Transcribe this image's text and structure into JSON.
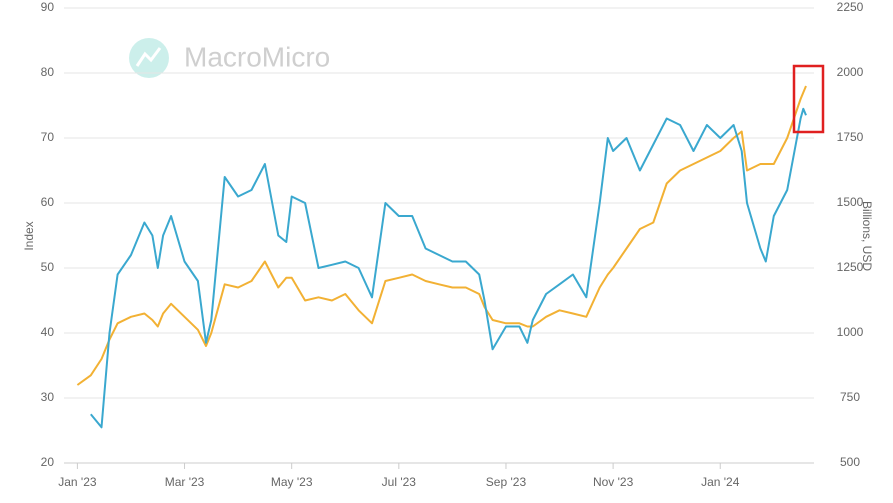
{
  "chart_data": {
    "type": "line",
    "watermark": "MacroMicro",
    "ylabel": "Index",
    "y2label": "Billions, USD",
    "x": [
      0,
      0.25,
      0.45,
      0.6,
      0.75,
      1,
      1.25,
      1.4,
      1.5,
      1.6,
      1.75,
      2,
      2.25,
      2.4,
      2.5,
      2.75,
      3,
      3.25,
      3.5,
      3.75,
      3.9,
      4,
      4.25,
      4.5,
      4.75,
      5,
      5.25,
      5.5,
      5.75,
      6,
      6.25,
      6.5,
      6.75,
      7,
      7.25,
      7.5,
      7.6,
      7.75,
      8,
      8.25,
      8.4,
      8.5,
      8.75,
      9,
      9.25,
      9.5,
      9.75,
      9.9,
      10,
      10.25,
      10.5,
      10.75,
      11,
      11.25,
      11.5,
      11.75,
      12,
      12.25,
      12.4,
      12.5,
      12.75,
      12.85,
      13,
      13.25,
      13.5,
      13.55,
      13.6
    ],
    "xlim": [
      -0.25,
      13.75
    ],
    "xticks": [
      {
        "value": 0,
        "label": "Jan '23"
      },
      {
        "value": 2,
        "label": "Mar '23"
      },
      {
        "value": 4,
        "label": "May '23"
      },
      {
        "value": 6,
        "label": "Jul '23"
      },
      {
        "value": 8,
        "label": "Sep '23"
      },
      {
        "value": 10,
        "label": "Nov '23"
      },
      {
        "value": 12,
        "label": "Jan '24"
      }
    ],
    "ylim": [
      20,
      90
    ],
    "yticks": [
      20,
      30,
      40,
      50,
      60,
      70,
      80,
      90
    ],
    "y2lim": [
      500,
      2250
    ],
    "y2ticks": [
      500,
      750,
      1000,
      1250,
      1500,
      1750,
      2000,
      2250
    ],
    "grid": true,
    "series": [
      {
        "color": "#3aa8cf",
        "values": [
          null,
          27.5,
          25.5,
          40,
          49,
          52,
          57,
          55,
          50,
          55,
          58,
          51,
          48,
          38.5,
          42,
          64,
          61,
          62,
          66,
          55,
          54,
          61,
          60,
          50,
          50.5,
          51,
          50,
          45.5,
          60,
          58,
          58,
          53,
          52,
          51,
          51,
          49,
          45,
          37.5,
          41,
          41,
          38.5,
          42,
          46,
          47.5,
          49,
          45.5,
          60,
          70,
          68,
          70,
          65,
          69,
          73,
          72,
          68,
          72,
          70,
          72,
          68,
          60,
          53,
          51,
          58,
          62,
          73,
          74.5,
          73.5
        ]
      },
      {
        "color": "#f2b134",
        "axis": "y2",
        "values": [
          800,
          837.5,
          900,
          975,
          1037.5,
          1062.5,
          1075,
          1050,
          1025,
          1075,
          1112.5,
          1062.5,
          1012.5,
          950,
          1000,
          1187.5,
          1175,
          1200,
          1275,
          1175,
          1212.5,
          1212.5,
          1125,
          1137.5,
          1125,
          1150,
          1087.5,
          1037.5,
          1200,
          1212.5,
          1225,
          1200,
          1187.5,
          1175,
          1175,
          1150,
          1100,
          1050,
          1037.5,
          1037.5,
          1025,
          1025,
          1062.5,
          1087.5,
          1075,
          1062.5,
          1175,
          1225,
          1250,
          1325,
          1400,
          1425,
          1575,
          1625,
          1650,
          1675,
          1700,
          1750,
          1775,
          1625,
          1650,
          1650,
          1650,
          1750,
          1900,
          1925,
          1950
        ]
      }
    ]
  }
}
